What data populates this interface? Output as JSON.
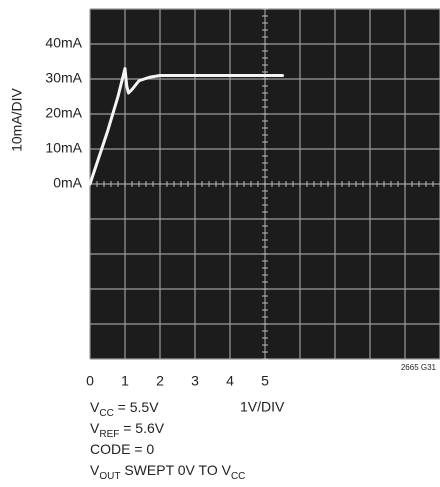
{
  "chart_data": {
    "type": "line",
    "ylabel": "10mA/DIV",
    "xlabel": "1V/DIV",
    "x": [
      0,
      0.2,
      0.5,
      0.8,
      1.0,
      1.05,
      1.1,
      1.2,
      1.4,
      1.7,
      2.0,
      3.0,
      4.0,
      5.0,
      5.5
    ],
    "values": [
      0,
      6,
      15,
      25,
      33,
      28,
      26,
      27,
      29.5,
      30.5,
      31,
      31,
      31,
      31,
      31
    ],
    "color": "#f4f4f4",
    "xlim": [
      0,
      10
    ],
    "xticks": [
      0,
      1,
      2,
      3,
      4,
      5
    ],
    "ylim": [
      -50,
      50
    ],
    "yticks": [
      {
        "value": 0,
        "label": "0mA"
      },
      {
        "value": 10,
        "label": "10mA"
      },
      {
        "value": 20,
        "label": "20mA"
      },
      {
        "value": 30,
        "label": "30mA"
      },
      {
        "value": 40,
        "label": "40mA"
      }
    ],
    "grid": true,
    "annotations": [
      [
        "V",
        "CC",
        " = 5.5V"
      ],
      [
        "V",
        "REF",
        " = 5.6V"
      ],
      [
        "CODE = 0"
      ],
      [
        "V",
        "OUT",
        "  SWEPT 0V TO V",
        "CC"
      ]
    ],
    "figure_id": "2665 G31"
  }
}
